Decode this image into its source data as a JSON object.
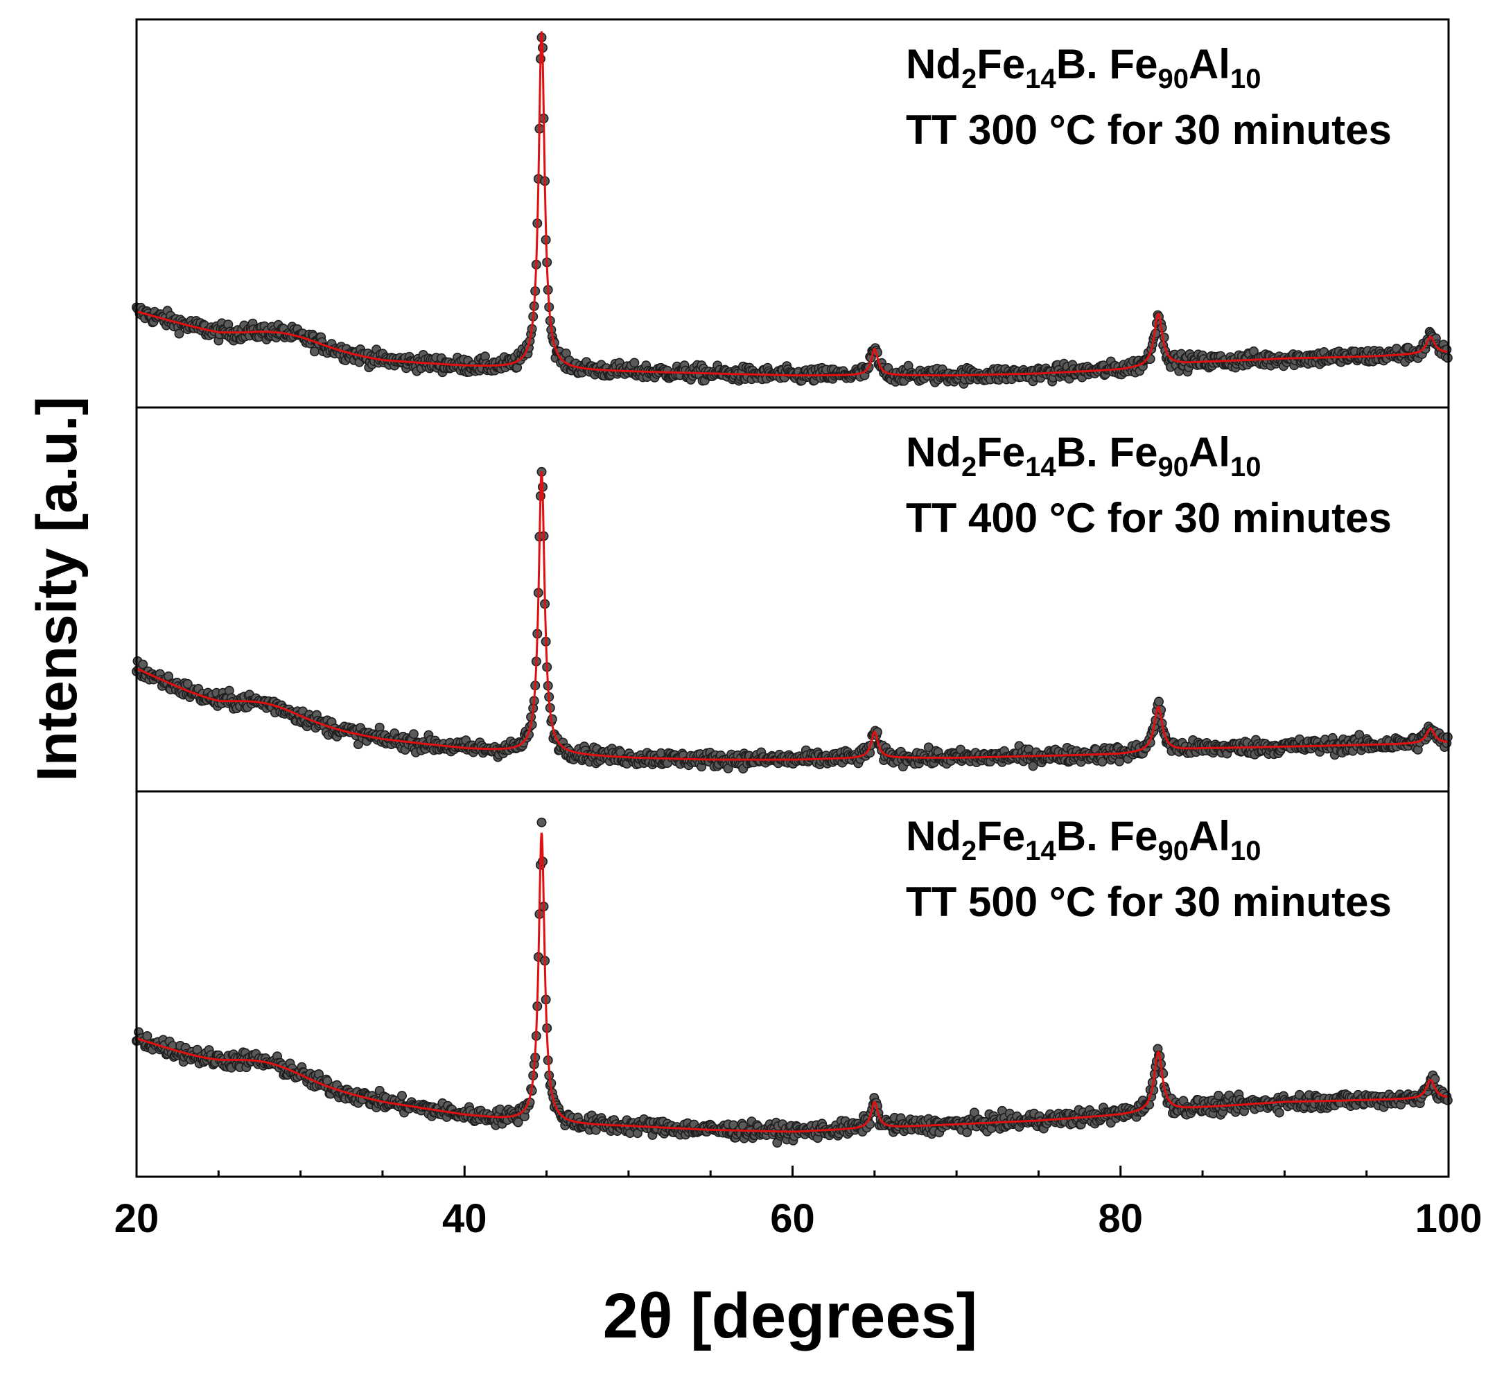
{
  "chart_data": {
    "type": "scatter",
    "title": "",
    "xlabel": "2θ [degrees]",
    "ylabel": "Intensity [a.u.]",
    "xlim": [
      20,
      100
    ],
    "x_ticks": [
      "20",
      "40",
      "60",
      "80",
      "100"
    ],
    "y_ticks": [],
    "series_styles": {
      "experimental": {
        "marker": "circle",
        "color": "#3a3a3a"
      },
      "fit": {
        "line": "solid",
        "color": "#e01010"
      }
    },
    "panels": [
      {
        "label": {
          "formula": [
            "Nd",
            "2",
            "Fe",
            "14",
            "B. Fe",
            "90",
            "Al",
            "10"
          ],
          "condition": "TT 300 °C for 30 minutes"
        },
        "background": [
          [
            20,
            0.255
          ],
          [
            25,
            0.195
          ],
          [
            30,
            0.16
          ],
          [
            35,
            0.125
          ],
          [
            40,
            0.11
          ],
          [
            45,
            0.1
          ],
          [
            50,
            0.095
          ],
          [
            55,
            0.09
          ],
          [
            60,
            0.085
          ],
          [
            65,
            0.085
          ],
          [
            70,
            0.085
          ],
          [
            75,
            0.09
          ],
          [
            80,
            0.1
          ],
          [
            85,
            0.12
          ],
          [
            90,
            0.13
          ],
          [
            95,
            0.135
          ],
          [
            100,
            0.145
          ]
        ],
        "peaks": [
          {
            "center": 44.7,
            "height": 0.9,
            "width": 0.22
          },
          {
            "center": 65.0,
            "height": 0.07,
            "width": 0.25
          },
          {
            "center": 82.3,
            "height": 0.14,
            "width": 0.3
          },
          {
            "center": 98.9,
            "height": 0.045,
            "width": 0.3
          }
        ],
        "hump": {
          "center": 29,
          "height": 0.03,
          "width": 3
        }
      },
      {
        "label": {
          "formula": [
            "Nd",
            "2",
            "Fe",
            "14",
            "B. Fe",
            "90",
            "Al",
            "10"
          ],
          "condition": "TT 400 °C for 30 minutes"
        },
        "background": [
          [
            20,
            0.33
          ],
          [
            25,
            0.23
          ],
          [
            30,
            0.18
          ],
          [
            35,
            0.14
          ],
          [
            40,
            0.115
          ],
          [
            45,
            0.1
          ],
          [
            50,
            0.09
          ],
          [
            55,
            0.085
          ],
          [
            60,
            0.085
          ],
          [
            65,
            0.09
          ],
          [
            70,
            0.09
          ],
          [
            75,
            0.095
          ],
          [
            80,
            0.1
          ],
          [
            85,
            0.115
          ],
          [
            90,
            0.12
          ],
          [
            95,
            0.125
          ],
          [
            100,
            0.13
          ]
        ],
        "peaks": [
          {
            "center": 44.7,
            "height": 0.76,
            "width": 0.22
          },
          {
            "center": 65.0,
            "height": 0.07,
            "width": 0.25
          },
          {
            "center": 82.3,
            "height": 0.12,
            "width": 0.3
          },
          {
            "center": 98.9,
            "height": 0.04,
            "width": 0.3
          }
        ],
        "hump": {
          "center": 28,
          "height": 0.035,
          "width": 3
        }
      },
      {
        "label": {
          "formula": [
            "Nd",
            "2",
            "Fe",
            "14",
            "B. Fe",
            "90",
            "Al",
            "10"
          ],
          "condition": "TT 500 °C for 30 minutes"
        },
        "background": [
          [
            20,
            0.37
          ],
          [
            25,
            0.3
          ],
          [
            30,
            0.25
          ],
          [
            35,
            0.2
          ],
          [
            40,
            0.165
          ],
          [
            45,
            0.14
          ],
          [
            50,
            0.135
          ],
          [
            55,
            0.125
          ],
          [
            60,
            0.12
          ],
          [
            65,
            0.13
          ],
          [
            70,
            0.14
          ],
          [
            75,
            0.15
          ],
          [
            80,
            0.165
          ],
          [
            85,
            0.185
          ],
          [
            90,
            0.2
          ],
          [
            95,
            0.205
          ],
          [
            100,
            0.21
          ]
        ],
        "peaks": [
          {
            "center": 44.7,
            "height": 0.78,
            "width": 0.22
          },
          {
            "center": 65.0,
            "height": 0.07,
            "width": 0.25
          },
          {
            "center": 82.3,
            "height": 0.16,
            "width": 0.3
          },
          {
            "center": 98.9,
            "height": 0.05,
            "width": 0.3
          }
        ],
        "hump": {
          "center": 28,
          "height": 0.035,
          "width": 3
        }
      }
    ]
  }
}
